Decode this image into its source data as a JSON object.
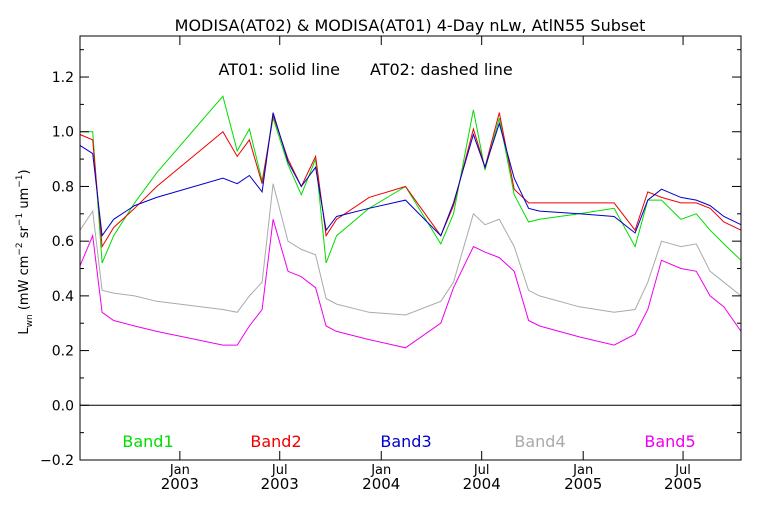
{
  "colors": {
    "background": "#ffffff",
    "axes": "#000000",
    "band1": "#00dd00",
    "band2": "#ee0000",
    "band3": "#0000cc",
    "band4": "#aaaaaa",
    "band5": "#ee00ee"
  },
  "chart_data": {
    "type": "line",
    "title": "MODISA(AT02) & MODISA(AT01) 4-Day nLw, AtlN55 Subset",
    "annotation_left": "AT01: solid line",
    "annotation_right": "AT02: dashed line",
    "ylabel": "L_wn (mW cm^-2 sr^-1 um^-1)",
    "ylabel_main": "L",
    "ylabel_sub": "wn",
    "ylabel_units_1": " (mW cm",
    "ylabel_exp_1": "−2",
    "ylabel_units_2": " sr",
    "ylabel_exp_2": "−1",
    "ylabel_units_3": " um",
    "ylabel_exp_3": "−1",
    "ylabel_units_4": ")",
    "ylim": [
      -0.2,
      1.35
    ],
    "xlim": [
      "2002-07-04",
      "2005-10-14"
    ],
    "yticks": [
      {
        "value": -0.2,
        "label": "−0.2"
      },
      {
        "value": 0.0,
        "label": "0.0"
      },
      {
        "value": 0.2,
        "label": "0.2"
      },
      {
        "value": 0.4,
        "label": "0.4"
      },
      {
        "value": 0.6,
        "label": "0.6"
      },
      {
        "value": 0.8,
        "label": "0.8"
      },
      {
        "value": 1.0,
        "label": "1.0"
      },
      {
        "value": 1.2,
        "label": "1.2"
      }
    ],
    "xticks": [
      {
        "date": "2003-01-01",
        "month": "Jan",
        "year": "2003"
      },
      {
        "date": "2003-07-01",
        "month": "Jul",
        "year": "2003"
      },
      {
        "date": "2004-01-01",
        "month": "Jan",
        "year": "2004"
      },
      {
        "date": "2004-07-01",
        "month": "Jul",
        "year": "2004"
      },
      {
        "date": "2005-01-01",
        "month": "Jan",
        "year": "2005"
      },
      {
        "date": "2005-07-01",
        "month": "Jul",
        "year": "2005"
      }
    ],
    "zero_line": 0.0,
    "x": [
      "2002-07-04",
      "2002-07-27",
      "2002-08-13",
      "2002-09-03",
      "2002-10-11",
      "2002-11-20",
      "2003-03-20",
      "2003-04-15",
      "2003-05-07",
      "2003-05-30",
      "2003-06-19",
      "2003-07-16",
      "2003-08-09",
      "2003-09-04",
      "2003-09-23",
      "2003-10-12",
      "2003-12-10",
      "2004-02-14",
      "2004-04-18",
      "2004-05-11",
      "2004-06-16",
      "2004-07-07",
      "2004-08-02",
      "2004-08-29",
      "2004-09-24",
      "2004-10-14",
      "2004-12-25",
      "2005-02-26",
      "2005-04-05",
      "2005-04-28",
      "2005-05-23",
      "2005-06-27",
      "2005-07-25",
      "2005-08-19",
      "2005-09-13",
      "2005-10-14"
    ],
    "series": [
      {
        "name": "Band1",
        "color_key": "band1",
        "values": [
          1.0,
          1.0,
          0.52,
          0.62,
          0.74,
          0.85,
          1.13,
          0.93,
          1.01,
          0.82,
          1.05,
          0.88,
          0.77,
          0.9,
          0.52,
          0.62,
          0.72,
          0.8,
          0.59,
          0.7,
          1.08,
          0.86,
          1.05,
          0.77,
          0.67,
          0.68,
          0.7,
          0.72,
          0.58,
          0.75,
          0.75,
          0.68,
          0.7,
          0.64,
          0.59,
          0.53
        ]
      },
      {
        "name": "Band2",
        "color_key": "band2",
        "values": [
          0.99,
          0.97,
          0.58,
          0.65,
          0.72,
          0.8,
          1.0,
          0.91,
          0.97,
          0.81,
          1.06,
          0.9,
          0.8,
          0.91,
          0.62,
          0.68,
          0.76,
          0.8,
          0.62,
          0.73,
          1.01,
          0.87,
          1.07,
          0.79,
          0.74,
          0.74,
          0.74,
          0.74,
          0.64,
          0.78,
          0.76,
          0.74,
          0.74,
          0.72,
          0.67,
          0.64
        ]
      },
      {
        "name": "Band3",
        "color_key": "band3",
        "values": [
          0.95,
          0.92,
          0.62,
          0.68,
          0.73,
          0.76,
          0.83,
          0.81,
          0.84,
          0.78,
          1.07,
          0.89,
          0.8,
          0.87,
          0.64,
          0.69,
          0.72,
          0.75,
          0.62,
          0.74,
          0.99,
          0.87,
          1.03,
          0.83,
          0.72,
          0.71,
          0.7,
          0.69,
          0.63,
          0.75,
          0.79,
          0.76,
          0.75,
          0.73,
          0.69,
          0.66
        ]
      },
      {
        "name": "Band4",
        "color_key": "band4",
        "values": [
          0.64,
          0.71,
          0.42,
          0.41,
          0.4,
          0.38,
          0.35,
          0.34,
          0.4,
          0.45,
          0.81,
          0.6,
          0.57,
          0.55,
          0.39,
          0.37,
          0.34,
          0.33,
          0.38,
          0.45,
          0.7,
          0.66,
          0.68,
          0.58,
          0.42,
          0.4,
          0.36,
          0.34,
          0.35,
          0.45,
          0.6,
          0.58,
          0.59,
          0.49,
          0.45,
          0.4
        ]
      },
      {
        "name": "Band5",
        "color_key": "band5",
        "values": [
          0.51,
          0.62,
          0.34,
          0.31,
          0.29,
          0.27,
          0.22,
          0.22,
          0.29,
          0.35,
          0.68,
          0.49,
          0.47,
          0.43,
          0.29,
          0.27,
          0.24,
          0.21,
          0.3,
          0.43,
          0.58,
          0.56,
          0.54,
          0.49,
          0.31,
          0.29,
          0.25,
          0.22,
          0.26,
          0.35,
          0.53,
          0.5,
          0.49,
          0.4,
          0.36,
          0.27
        ]
      }
    ]
  }
}
